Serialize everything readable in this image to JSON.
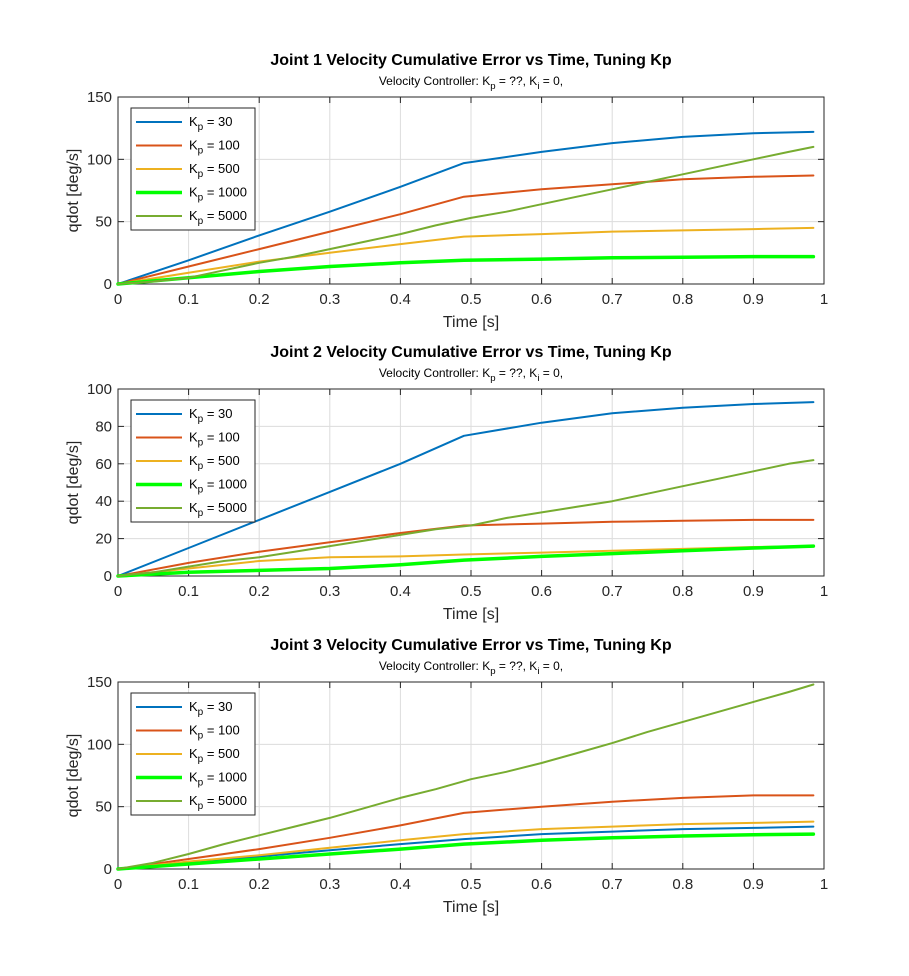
{
  "chart_data": [
    {
      "type": "line",
      "title": "Joint 1 Velocity Cumulative Error vs Time, Tuning Kp",
      "subtitle": "Velocity Controller: K_p = ??, K_i = 0,",
      "xlabel": "Time [s]",
      "ylabel": "qdot [deg/s]",
      "xlim": [
        0,
        1
      ],
      "ylim": [
        0,
        150
      ],
      "xticks": [
        "0",
        "0.1",
        "0.2",
        "0.3",
        "0.4",
        "0.5",
        "0.6",
        "0.7",
        "0.8",
        "0.9",
        "1"
      ],
      "yticks": [
        "0",
        "50",
        "100",
        "150"
      ],
      "grid": true,
      "legend_position": "top-left",
      "series": [
        {
          "name": "Kp = 30",
          "color": "#0072BD",
          "x": [
            0,
            0.1,
            0.2,
            0.3,
            0.4,
            0.49,
            0.6,
            0.7,
            0.8,
            0.9,
            0.985
          ],
          "values": [
            0,
            19,
            39,
            58,
            78,
            97,
            106,
            113,
            118,
            121,
            122
          ]
        },
        {
          "name": "Kp = 100",
          "color": "#D95319",
          "x": [
            0,
            0.1,
            0.2,
            0.3,
            0.4,
            0.49,
            0.6,
            0.7,
            0.8,
            0.9,
            0.985
          ],
          "values": [
            0,
            14,
            28,
            42,
            56,
            70,
            76,
            80,
            84,
            86,
            87
          ]
        },
        {
          "name": "Kp = 500",
          "color": "#EDB120",
          "x": [
            0,
            0.1,
            0.2,
            0.3,
            0.4,
            0.49,
            0.6,
            0.7,
            0.8,
            0.9,
            0.985
          ],
          "values": [
            0,
            9,
            18,
            25,
            32,
            38,
            40,
            42,
            43,
            44,
            45
          ]
        },
        {
          "name": "Kp = 1000",
          "color": "#00FF00",
          "x": [
            0,
            0.1,
            0.2,
            0.3,
            0.4,
            0.49,
            0.6,
            0.7,
            0.8,
            0.9,
            0.985
          ],
          "values": [
            0,
            5,
            10,
            14,
            17,
            19,
            20,
            21,
            21.5,
            22,
            22
          ]
        },
        {
          "name": "Kp = 5000",
          "color": "#77AC30",
          "x": [
            0,
            0.05,
            0.1,
            0.15,
            0.2,
            0.25,
            0.3,
            0.35,
            0.4,
            0.45,
            0.5,
            0.55,
            0.6,
            0.65,
            0.7,
            0.75,
            0.8,
            0.85,
            0.9,
            0.95,
            0.985
          ],
          "values": [
            0,
            2,
            5,
            11,
            17,
            22,
            28,
            34,
            40,
            47,
            53,
            58,
            64,
            70,
            76,
            82,
            88,
            94,
            100,
            106,
            110
          ]
        }
      ]
    },
    {
      "type": "line",
      "title": "Joint 2 Velocity Cumulative Error vs Time, Tuning Kp",
      "subtitle": "Velocity Controller: K_p = ??, K_i = 0,",
      "xlabel": "Time [s]",
      "ylabel": "qdot [deg/s]",
      "xlim": [
        0,
        1
      ],
      "ylim": [
        0,
        100
      ],
      "xticks": [
        "0",
        "0.1",
        "0.2",
        "0.3",
        "0.4",
        "0.5",
        "0.6",
        "0.7",
        "0.8",
        "0.9",
        "1"
      ],
      "yticks": [
        "0",
        "20",
        "40",
        "60",
        "80",
        "100"
      ],
      "grid": true,
      "legend_position": "top-left",
      "series": [
        {
          "name": "Kp = 30",
          "color": "#0072BD",
          "x": [
            0,
            0.1,
            0.2,
            0.3,
            0.4,
            0.49,
            0.6,
            0.7,
            0.8,
            0.9,
            0.985
          ],
          "values": [
            0,
            15,
            30,
            45,
            60,
            75,
            82,
            87,
            90,
            92,
            93
          ]
        },
        {
          "name": "Kp = 100",
          "color": "#D95319",
          "x": [
            0,
            0.1,
            0.2,
            0.3,
            0.4,
            0.49,
            0.6,
            0.7,
            0.8,
            0.9,
            0.985
          ],
          "values": [
            0,
            7,
            13,
            18,
            23,
            27,
            28,
            29,
            29.5,
            30,
            30
          ]
        },
        {
          "name": "Kp = 500",
          "color": "#EDB120",
          "x": [
            0,
            0.1,
            0.2,
            0.3,
            0.4,
            0.49,
            0.6,
            0.7,
            0.8,
            0.9,
            0.985
          ],
          "values": [
            0,
            4,
            8,
            10,
            10.5,
            11.5,
            12.5,
            13.5,
            14.5,
            15.5,
            16
          ]
        },
        {
          "name": "Kp = 1000",
          "color": "#00FF00",
          "x": [
            0,
            0.1,
            0.2,
            0.3,
            0.4,
            0.49,
            0.6,
            0.7,
            0.8,
            0.9,
            0.985
          ],
          "values": [
            0,
            2,
            3,
            4,
            6,
            8.5,
            10.5,
            12,
            13.5,
            15,
            16
          ]
        },
        {
          "name": "Kp = 5000",
          "color": "#77AC30",
          "x": [
            0,
            0.05,
            0.1,
            0.15,
            0.2,
            0.25,
            0.3,
            0.35,
            0.4,
            0.45,
            0.5,
            0.55,
            0.6,
            0.65,
            0.7,
            0.75,
            0.8,
            0.85,
            0.9,
            0.95,
            0.985
          ],
          "values": [
            0,
            2,
            5,
            8,
            10,
            13,
            16,
            19,
            22,
            25,
            27,
            31,
            34,
            37,
            40,
            44,
            48,
            52,
            56,
            60,
            62
          ]
        }
      ]
    },
    {
      "type": "line",
      "title": "Joint 3 Velocity Cumulative Error vs Time, Tuning Kp",
      "subtitle": "Velocity Controller: K_p = ??, K_i = 0,",
      "xlabel": "Time [s]",
      "ylabel": "qdot [deg/s]",
      "xlim": [
        0,
        1
      ],
      "ylim": [
        0,
        150
      ],
      "xticks": [
        "0",
        "0.1",
        "0.2",
        "0.3",
        "0.4",
        "0.5",
        "0.6",
        "0.7",
        "0.8",
        "0.9",
        "1"
      ],
      "yticks": [
        "0",
        "50",
        "100",
        "150"
      ],
      "grid": true,
      "legend_position": "top-left",
      "series": [
        {
          "name": "Kp = 30",
          "color": "#0072BD",
          "x": [
            0,
            0.1,
            0.2,
            0.3,
            0.4,
            0.49,
            0.6,
            0.7,
            0.8,
            0.9,
            0.985
          ],
          "values": [
            0,
            5,
            10,
            15,
            20,
            24,
            28,
            30,
            32,
            33,
            34
          ]
        },
        {
          "name": "Kp = 100",
          "color": "#D95319",
          "x": [
            0,
            0.1,
            0.2,
            0.3,
            0.4,
            0.49,
            0.6,
            0.7,
            0.8,
            0.9,
            0.985
          ],
          "values": [
            0,
            8,
            16,
            25,
            35,
            45,
            50,
            54,
            57,
            59,
            59
          ]
        },
        {
          "name": "Kp = 500",
          "color": "#EDB120",
          "x": [
            0,
            0.1,
            0.2,
            0.3,
            0.4,
            0.49,
            0.6,
            0.7,
            0.8,
            0.9,
            0.985
          ],
          "values": [
            0,
            6,
            11,
            17,
            23,
            28,
            32,
            34,
            36,
            37,
            38
          ]
        },
        {
          "name": "Kp = 1000",
          "color": "#00FF00",
          "x": [
            0,
            0.1,
            0.2,
            0.3,
            0.4,
            0.49,
            0.6,
            0.7,
            0.8,
            0.9,
            0.985
          ],
          "values": [
            0,
            4,
            8,
            12,
            16,
            20,
            23,
            25,
            26.5,
            27.5,
            28
          ]
        },
        {
          "name": "Kp = 5000",
          "color": "#77AC30",
          "x": [
            0,
            0.05,
            0.1,
            0.15,
            0.2,
            0.25,
            0.3,
            0.35,
            0.4,
            0.45,
            0.5,
            0.55,
            0.6,
            0.65,
            0.7,
            0.75,
            0.8,
            0.85,
            0.9,
            0.95,
            0.985
          ],
          "values": [
            0,
            5,
            12,
            20,
            27,
            34,
            41,
            49,
            57,
            64,
            72,
            78,
            85,
            93,
            101,
            110,
            118,
            126,
            134,
            142,
            148
          ]
        }
      ]
    }
  ]
}
